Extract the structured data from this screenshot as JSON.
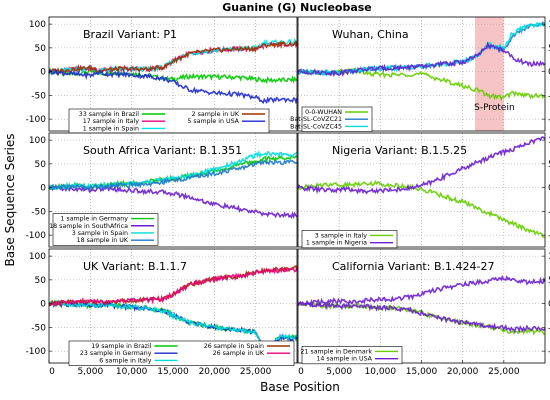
{
  "figure": {
    "title": "Guanine (G) Nucleobase",
    "xlabel": "Base Position",
    "ylabel": "Base Sequence Series"
  },
  "chart_data": [
    {
      "type": "line",
      "id": "brazil",
      "title": "Brazil Variant: P1",
      "xlim": [
        0,
        30000
      ],
      "ylim": [
        -125,
        115
      ],
      "grid": true,
      "legend_position": "bottom",
      "series": [
        {
          "name": "33 sample in Brazil",
          "color": "#00c800",
          "x": [
            0,
            3000,
            5000,
            6000,
            7000,
            9000,
            12000,
            14000,
            15000,
            17000,
            20000,
            23000,
            25000,
            26000,
            28000,
            30000
          ],
          "y": [
            0,
            -5,
            0,
            -3,
            -4,
            -2,
            -8,
            -15,
            -16,
            -10,
            -11,
            -12,
            -16,
            -18,
            -18,
            -17
          ]
        },
        {
          "name": "17 sample in Italy",
          "color": "#e6007a",
          "x": [
            0,
            3000,
            5000,
            6000,
            7000,
            9000,
            12000,
            14000,
            15000,
            17000,
            20000,
            23000,
            25000,
            26000,
            28000,
            30000
          ],
          "y": [
            0,
            5,
            8,
            2,
            4,
            6,
            5,
            10,
            22,
            38,
            45,
            48,
            48,
            55,
            58,
            58
          ]
        },
        {
          "name": "1 sample in Spain",
          "color": "#00e5e5",
          "x": [
            0,
            3000,
            5000,
            6000,
            7000,
            9000,
            12000,
            14000,
            15000,
            17000,
            20000,
            23000,
            25000,
            26000,
            28000,
            30000
          ],
          "y": [
            0,
            5,
            8,
            0,
            5,
            6,
            5,
            10,
            22,
            38,
            45,
            48,
            50,
            60,
            62,
            62
          ]
        },
        {
          "name": "2 sample in UK",
          "color": "#a03000",
          "x": [
            0,
            3000,
            5000,
            6000,
            7000,
            9000,
            12000,
            14000,
            15000,
            17000,
            20000,
            23000,
            25000,
            26000,
            28000,
            30000
          ],
          "y": [
            0,
            5,
            8,
            2,
            4,
            6,
            5,
            10,
            22,
            38,
            45,
            48,
            48,
            55,
            58,
            58
          ]
        },
        {
          "name": "5 sample in USA",
          "color": "#1e2ad0",
          "x": [
            0,
            3000,
            5000,
            6000,
            7000,
            9000,
            12000,
            14000,
            15000,
            17000,
            20000,
            23000,
            25000,
            26000,
            28000,
            30000
          ],
          "y": [
            0,
            -5,
            -8,
            -2,
            -5,
            -6,
            -10,
            -15,
            -22,
            -38,
            -45,
            -48,
            -55,
            -62,
            -58,
            -60
          ]
        }
      ]
    },
    {
      "type": "line",
      "id": "wuhan",
      "title": "Wuhan, China",
      "xlim": [
        0,
        30000
      ],
      "ylim": [
        -125,
        115
      ],
      "grid": true,
      "legend_position": "bottom-left",
      "shaded_region": {
        "x": [
          21500,
          25000
        ],
        "label": "S-Protein",
        "color": "#f6c4c4"
      },
      "series": [
        {
          "name": "0-0-WUHAN",
          "color": "#66cc00",
          "x": [
            0,
            3000,
            5000,
            7000,
            9000,
            12000,
            14000,
            15000,
            17000,
            20000,
            22000,
            23000,
            25000,
            26000,
            28000,
            30000
          ],
          "y": [
            0,
            -3,
            -2,
            3,
            -6,
            -7,
            -5,
            -5,
            -15,
            -30,
            -40,
            -50,
            -55,
            -45,
            -50,
            -52
          ]
        },
        {
          "name": "Bat-SL-CoVZC21",
          "color": "#1e78c8",
          "x": [
            0,
            3000,
            5000,
            7000,
            9000,
            12000,
            14000,
            15000,
            17000,
            20000,
            22000,
            23000,
            25000,
            26000,
            28000,
            30000
          ],
          "y": [
            0,
            -2,
            -3,
            2,
            6,
            8,
            10,
            10,
            15,
            20,
            35,
            55,
            45,
            75,
            95,
            100
          ]
        },
        {
          "name": "Bat-SL-CoVZC45",
          "color": "#00dcdc",
          "x": [
            0,
            3000,
            5000,
            7000,
            9000,
            12000,
            14000,
            15000,
            17000,
            20000,
            22000,
            23000,
            25000,
            26000,
            28000,
            30000
          ],
          "y": [
            0,
            -2,
            -3,
            2,
            6,
            8,
            10,
            10,
            15,
            20,
            35,
            58,
            50,
            80,
            97,
            102
          ]
        },
        {
          "name": "",
          "color": "#6a1ed0",
          "x": [
            0,
            3000,
            5000,
            7000,
            9000,
            12000,
            14000,
            15000,
            17000,
            20000,
            22000,
            23000,
            25000,
            26000,
            28000,
            30000
          ],
          "y": [
            0,
            -2,
            -3,
            2,
            6,
            8,
            10,
            10,
            15,
            20,
            35,
            55,
            45,
            30,
            15,
            18
          ]
        }
      ]
    },
    {
      "type": "line",
      "id": "south-africa",
      "title": "South Africa Variant: B.1.351",
      "xlim": [
        0,
        30000
      ],
      "ylim": [
        -125,
        115
      ],
      "grid": true,
      "legend_position": "bottom-left",
      "series": [
        {
          "name": "1 sample in Germany",
          "color": "#00c800",
          "x": [
            0,
            3000,
            5000,
            7000,
            9000,
            12000,
            14000,
            15000,
            17000,
            20000,
            23000,
            25000,
            26000,
            28000,
            30000
          ],
          "y": [
            0,
            5,
            2,
            6,
            8,
            12,
            18,
            20,
            25,
            35,
            48,
            55,
            60,
            62,
            65
          ]
        },
        {
          "name": "18 sample in SouthAfrica",
          "color": "#6a1ed0",
          "x": [
            0,
            3000,
            5000,
            7000,
            9000,
            12000,
            14000,
            15000,
            17000,
            20000,
            23000,
            25000,
            26000,
            28000,
            30000
          ],
          "y": [
            0,
            -3,
            -5,
            -2,
            -5,
            -8,
            -10,
            -12,
            -20,
            -35,
            -45,
            -52,
            -55,
            -58,
            -58
          ]
        },
        {
          "name": "3 sample in Spain",
          "color": "#00dcdc",
          "x": [
            0,
            3000,
            5000,
            7000,
            9000,
            12000,
            14000,
            15000,
            17000,
            20000,
            23000,
            25000,
            26000,
            28000,
            30000
          ],
          "y": [
            0,
            5,
            2,
            6,
            8,
            12,
            18,
            20,
            25,
            38,
            55,
            68,
            72,
            70,
            70
          ]
        },
        {
          "name": "18 sample in UK",
          "color": "#1e78c8",
          "x": [
            0,
            3000,
            5000,
            7000,
            9000,
            12000,
            14000,
            15000,
            17000,
            20000,
            23000,
            25000,
            26000,
            28000,
            30000
          ],
          "y": [
            0,
            3,
            0,
            4,
            5,
            8,
            12,
            15,
            20,
            30,
            40,
            50,
            55,
            52,
            55
          ]
        }
      ]
    },
    {
      "type": "line",
      "id": "nigeria",
      "title": "Nigeria Variant: B.1.5.25",
      "xlim": [
        0,
        30000
      ],
      "ylim": [
        -125,
        115
      ],
      "grid": true,
      "legend_position": "bottom-left",
      "series": [
        {
          "name": "3 sample in Italy",
          "color": "#66cc00",
          "x": [
            0,
            2000,
            4000,
            6000,
            8000,
            10000,
            12000,
            14000,
            16000,
            18000,
            20000,
            22000,
            24000,
            26000,
            28000,
            30000
          ],
          "y": [
            0,
            3,
            8,
            5,
            10,
            8,
            5,
            0,
            -8,
            -20,
            -30,
            -45,
            -60,
            -75,
            -90,
            -102
          ]
        },
        {
          "name": "1 sample in Nigeria",
          "color": "#6a1ed0",
          "x": [
            0,
            2000,
            4000,
            6000,
            8000,
            10000,
            12000,
            14000,
            16000,
            18000,
            20000,
            22000,
            24000,
            26000,
            28000,
            30000
          ],
          "y": [
            0,
            -3,
            -6,
            -3,
            -8,
            -6,
            -4,
            0,
            10,
            25,
            40,
            55,
            70,
            80,
            95,
            105
          ]
        }
      ]
    },
    {
      "type": "line",
      "id": "uk",
      "title": "UK Variant: B.1.1.7",
      "xlim": [
        0,
        30000
      ],
      "ylim": [
        -125,
        115
      ],
      "grid": true,
      "legend_position": "bottom",
      "series": [
        {
          "name": "19 sample in Brazil",
          "color": "#00c800",
          "x": [
            0,
            3000,
            5000,
            7000,
            9000,
            12000,
            14000,
            15000,
            17000,
            20000,
            23000,
            25000,
            26000,
            28000,
            30000
          ],
          "y": [
            0,
            -2,
            -4,
            -2,
            -6,
            -10,
            -15,
            -25,
            -40,
            -50,
            -55,
            -60,
            -100,
            -70,
            -72
          ]
        },
        {
          "name": "23 sample in Germany",
          "color": "#1e2ad0",
          "x": [
            0,
            3000,
            5000,
            7000,
            9000,
            12000,
            14000,
            15000,
            17000,
            20000,
            23000,
            25000,
            26000,
            28000,
            30000
          ],
          "y": [
            0,
            -2,
            -4,
            -2,
            -6,
            -10,
            -15,
            -25,
            -40,
            -50,
            -55,
            -60,
            -98,
            -72,
            -74
          ]
        },
        {
          "name": "6 sample in Italy",
          "color": "#00dcdc",
          "x": [
            0,
            3000,
            5000,
            7000,
            9000,
            12000,
            14000,
            15000,
            17000,
            20000,
            23000,
            25000,
            26000,
            28000,
            30000
          ],
          "y": [
            0,
            -2,
            -4,
            -2,
            -6,
            -10,
            -15,
            -25,
            -40,
            -50,
            -55,
            -60,
            -96,
            -70,
            -70
          ]
        },
        {
          "name": "26 sample in Spain",
          "color": "#a03000",
          "x": [
            0,
            3000,
            5000,
            7000,
            9000,
            12000,
            14000,
            15000,
            17000,
            20000,
            23000,
            25000,
            26000,
            28000,
            30000
          ],
          "y": [
            0,
            3,
            5,
            2,
            6,
            8,
            10,
            20,
            40,
            52,
            58,
            65,
            70,
            72,
            75
          ]
        },
        {
          "name": "26 sample in UK",
          "color": "#e6007a",
          "x": [
            0,
            3000,
            5000,
            7000,
            9000,
            12000,
            14000,
            15000,
            17000,
            20000,
            23000,
            25000,
            26000,
            28000,
            30000
          ],
          "y": [
            0,
            3,
            5,
            2,
            6,
            8,
            10,
            20,
            40,
            52,
            58,
            65,
            68,
            70,
            72
          ]
        }
      ]
    },
    {
      "type": "line",
      "id": "california",
      "title": "California Variant: B.1.424-27",
      "xlim": [
        0,
        30000
      ],
      "ylim": [
        -125,
        115
      ],
      "grid": true,
      "legend_position": "bottom-left",
      "series": [
        {
          "name": "21 sample in Denmark",
          "color": "#66cc00",
          "x": [
            0,
            3000,
            5000,
            7000,
            9000,
            12000,
            14000,
            15000,
            17000,
            20000,
            23000,
            25000,
            26000,
            28000,
            30000
          ],
          "y": [
            0,
            -4,
            -6,
            -4,
            -8,
            -10,
            -15,
            -20,
            -30,
            -40,
            -48,
            -55,
            -60,
            -58,
            -60
          ]
        },
        {
          "name": "14 sample in USA",
          "color": "#6a1ed0",
          "x": [
            0,
            3000,
            5000,
            7000,
            9000,
            12000,
            14000,
            15000,
            17000,
            20000,
            23000,
            25000,
            26000,
            28000,
            30000
          ],
          "y": [
            0,
            -4,
            -6,
            -4,
            -8,
            -10,
            -15,
            -20,
            -30,
            -40,
            -48,
            -50,
            -55,
            -52,
            -55
          ]
        },
        {
          "name": "",
          "color": "#6a1ed0",
          "x": [
            0,
            3000,
            5000,
            7000,
            9000,
            12000,
            14000,
            15000,
            17000,
            20000,
            23000,
            25000,
            26000,
            28000,
            30000
          ],
          "y": [
            0,
            4,
            6,
            4,
            8,
            10,
            15,
            20,
            30,
            40,
            48,
            55,
            50,
            45,
            48
          ]
        }
      ]
    }
  ]
}
